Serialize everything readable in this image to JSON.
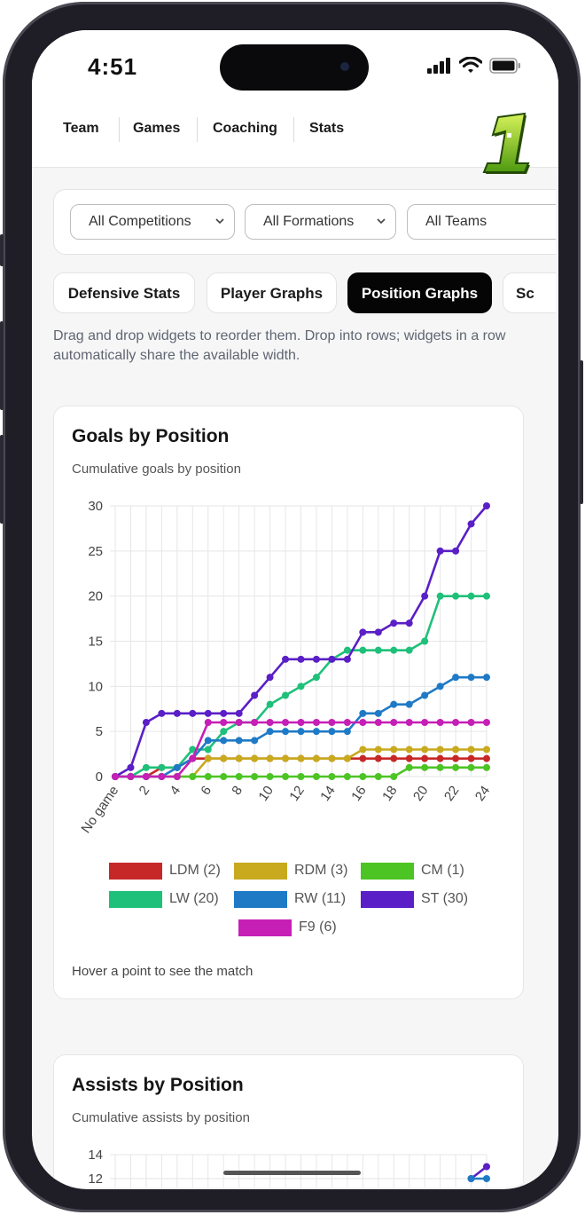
{
  "status_bar": {
    "time": "4:51"
  },
  "nav": {
    "items": [
      "Team",
      "Games",
      "Coaching",
      "Stats"
    ]
  },
  "filters": {
    "competitions": "All Competitions",
    "formations": "All Formations",
    "teams": "All Teams"
  },
  "tabs": [
    "Defensive Stats",
    "Player Graphs",
    "Position Graphs",
    "Sc"
  ],
  "active_tab": "Position Graphs",
  "hint": "Drag and drop widgets to reorder them. Drop into rows; widgets in a row automatically share the available width.",
  "goals_card": {
    "title": "Goals by Position",
    "subtitle": "Cumulative goals by position",
    "footer": "Hover a point to see the match"
  },
  "assists_card": {
    "title": "Assists by Position",
    "subtitle": "Cumulative assists by position"
  },
  "chart_data": [
    {
      "type": "line",
      "title": "Goals by Position",
      "subtitle": "Cumulative goals by position",
      "x_labels": [
        "No game",
        "1",
        "2",
        "3",
        "4",
        "5",
        "6",
        "7",
        "8",
        "9",
        "10",
        "11",
        "12",
        "13",
        "14",
        "15",
        "16",
        "17",
        "18",
        "19",
        "20",
        "21",
        "22",
        "23",
        "24"
      ],
      "x_tick_labels_shown": [
        "No game",
        "2",
        "4",
        "6",
        "8",
        "10",
        "12",
        "14",
        "16",
        "18",
        "20",
        "22",
        "24"
      ],
      "y_ticks": [
        0,
        5,
        10,
        15,
        20,
        25,
        30
      ],
      "ylim": [
        0,
        30
      ],
      "grid": true,
      "legend_position": "bottom",
      "series": [
        {
          "name": "LDM (2)",
          "color": "#c62828",
          "values": [
            0,
            0,
            0,
            1,
            1,
            2,
            2,
            2,
            2,
            2,
            2,
            2,
            2,
            2,
            2,
            2,
            2,
            2,
            2,
            2,
            2,
            2,
            2,
            2,
            2
          ]
        },
        {
          "name": "RDM (3)",
          "color": "#c9a91e",
          "values": [
            0,
            0,
            0,
            0,
            0,
            0,
            2,
            2,
            2,
            2,
            2,
            2,
            2,
            2,
            2,
            2,
            3,
            3,
            3,
            3,
            3,
            3,
            3,
            3,
            3
          ]
        },
        {
          "name": "CM (1)",
          "color": "#4cc424",
          "values": [
            0,
            0,
            0,
            0,
            0,
            0,
            0,
            0,
            0,
            0,
            0,
            0,
            0,
            0,
            0,
            0,
            0,
            0,
            0,
            1,
            1,
            1,
            1,
            1,
            1
          ]
        },
        {
          "name": "LW (20)",
          "color": "#1fc07a",
          "values": [
            0,
            0,
            1,
            1,
            1,
            3,
            3,
            5,
            6,
            6,
            8,
            9,
            10,
            11,
            13,
            14,
            14,
            14,
            14,
            14,
            15,
            20,
            20,
            20,
            20
          ]
        },
        {
          "name": "RW (11)",
          "color": "#1f7ac6",
          "values": [
            0,
            0,
            0,
            0,
            1,
            2,
            4,
            4,
            4,
            4,
            5,
            5,
            5,
            5,
            5,
            5,
            7,
            7,
            8,
            8,
            9,
            10,
            11,
            11,
            11
          ]
        },
        {
          "name": "ST (30)",
          "color": "#5a1fc6",
          "values": [
            0,
            1,
            6,
            7,
            7,
            7,
            7,
            7,
            7,
            9,
            11,
            13,
            13,
            13,
            13,
            13,
            16,
            16,
            17,
            17,
            20,
            25,
            25,
            28,
            30
          ]
        },
        {
          "name": "F9 (6)",
          "color": "#c61fb6",
          "values": [
            0,
            0,
            0,
            0,
            0,
            2,
            6,
            6,
            6,
            6,
            6,
            6,
            6,
            6,
            6,
            6,
            6,
            6,
            6,
            6,
            6,
            6,
            6,
            6,
            6
          ]
        }
      ]
    },
    {
      "type": "line",
      "title": "Assists by Position",
      "subtitle": "Cumulative assists by position",
      "y_ticks_visible": [
        14,
        12
      ],
      "series": [
        {
          "name": "ST",
          "color": "#5a1fc6",
          "values": [
            12,
            13
          ]
        },
        {
          "name": "RW",
          "color": "#1f7ac6",
          "values": [
            12,
            12
          ]
        }
      ]
    }
  ]
}
